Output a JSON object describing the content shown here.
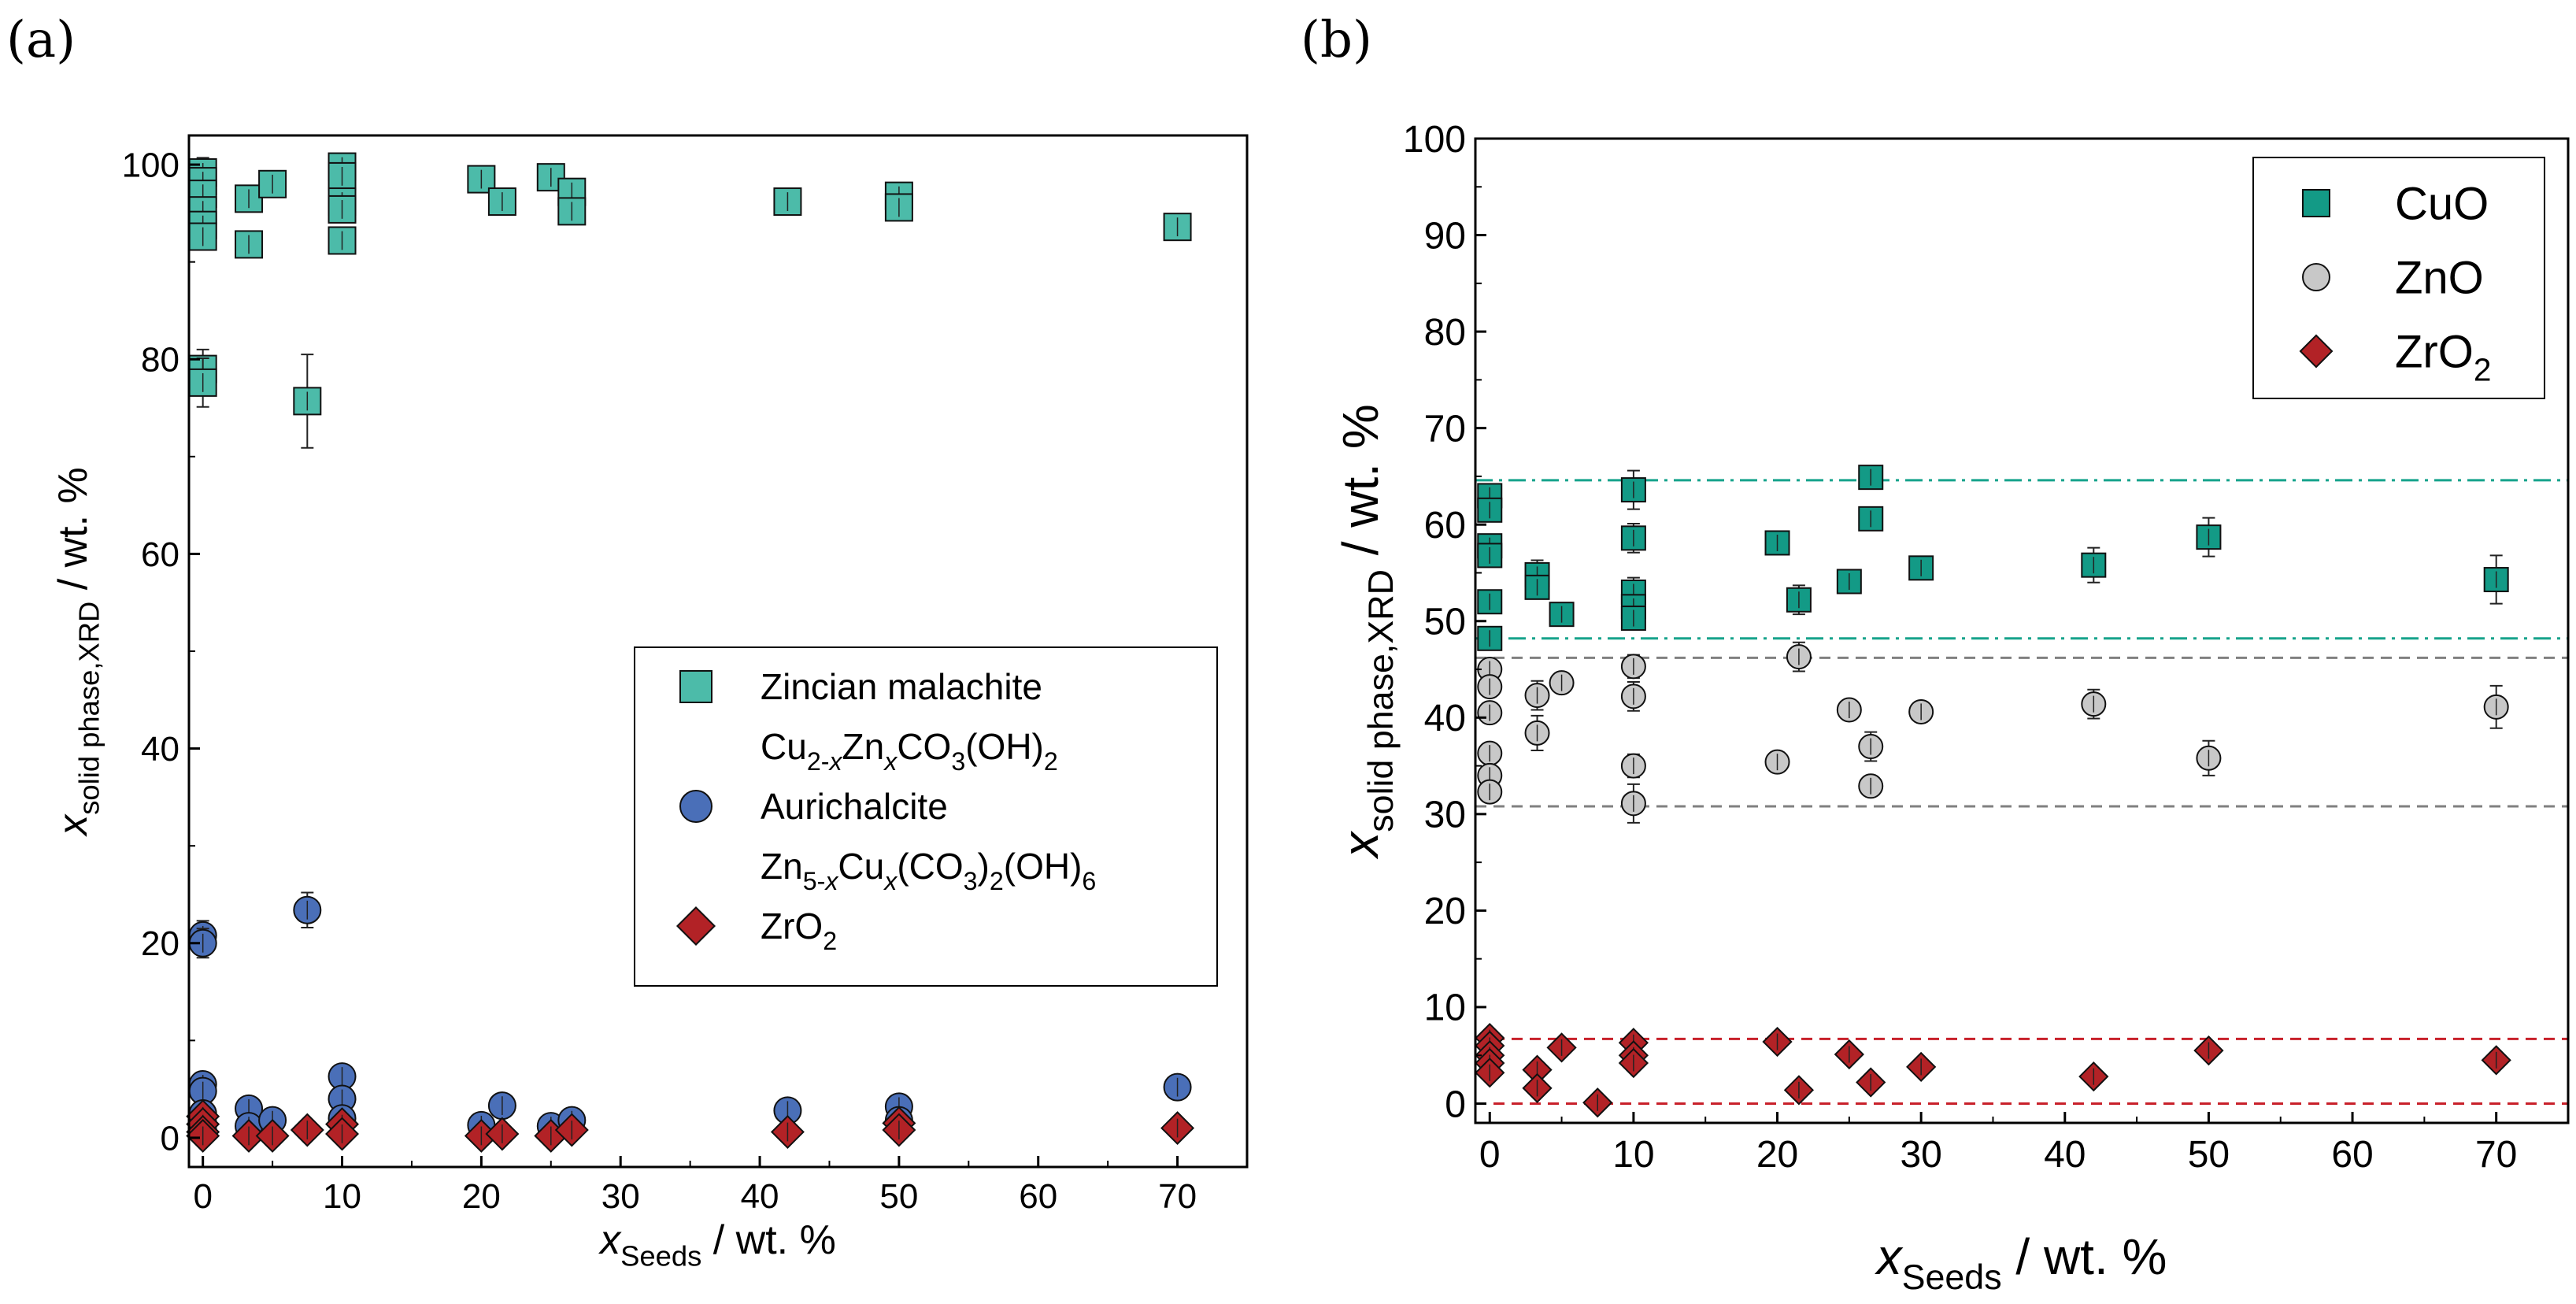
{
  "figure": {
    "panel_a_label": "(a)",
    "panel_b_label": "(b)"
  },
  "colors": {
    "malachite": "#4cbba9",
    "aurichalcite": "#4a6fb8",
    "zro2": "#b22226",
    "cuo": "#139a86",
    "zno": "#c8c8c8",
    "cuo_line": "#16a38c",
    "zno_line": "#808080",
    "zro2_line": "#c8202a"
  },
  "chart_data": [
    {
      "id": "a",
      "type": "scatter",
      "title": "",
      "xlabel": {
        "main": "x",
        "sub": "Seeds",
        "rest": " / wt. %"
      },
      "ylabel": {
        "main": "x",
        "sub": "solid phase,XRD",
        "rest": " / wt. %"
      },
      "xlim": [
        -1,
        75
      ],
      "ylim": [
        -3,
        103
      ],
      "xticks": [
        0,
        10,
        20,
        30,
        40,
        50,
        60,
        70
      ],
      "yticks": [
        0,
        20,
        40,
        60,
        80,
        100
      ],
      "legend_position": "lower-right",
      "series": [
        {
          "name": "Zincian malachite",
          "formula": "Cu2-xZnxCO3(OH)2",
          "marker": "square",
          "color_key": "malachite",
          "points": [
            {
              "x": 0,
              "y": 99.2,
              "err": 1.5
            },
            {
              "x": 0,
              "y": 98.3,
              "err": 1.2
            },
            {
              "x": 0,
              "y": 97.0,
              "err": 1.0
            },
            {
              "x": 0,
              "y": 95.3,
              "err": 1.0
            },
            {
              "x": 0,
              "y": 93.8,
              "err": 1.0
            },
            {
              "x": 0,
              "y": 92.6,
              "err": 1.0
            },
            {
              "x": 0,
              "y": 79.0,
              "err": 2.0
            },
            {
              "x": 0,
              "y": 77.6,
              "err": 2.5
            },
            {
              "x": 3.3,
              "y": 96.5,
              "err": 1.0
            },
            {
              "x": 3.3,
              "y": 91.8,
              "err": 1.0
            },
            {
              "x": 5,
              "y": 98.0,
              "err": 1.0
            },
            {
              "x": 7.5,
              "y": 75.7,
              "err": 4.8
            },
            {
              "x": 10,
              "y": 99.8,
              "err": 1.0
            },
            {
              "x": 10,
              "y": 98.8,
              "err": 1.0
            },
            {
              "x": 10,
              "y": 96.2,
              "err": 1.0
            },
            {
              "x": 10,
              "y": 95.4,
              "err": 1.0
            },
            {
              "x": 10,
              "y": 92.2,
              "err": 1.0
            },
            {
              "x": 20,
              "y": 98.5,
              "err": 1.0
            },
            {
              "x": 21.5,
              "y": 96.2,
              "err": 1.0
            },
            {
              "x": 25,
              "y": 98.7,
              "err": 1.0
            },
            {
              "x": 26.5,
              "y": 97.2,
              "err": 1.0
            },
            {
              "x": 26.5,
              "y": 95.2,
              "err": 1.0
            },
            {
              "x": 42,
              "y": 96.2,
              "err": 1.0
            },
            {
              "x": 50,
              "y": 96.8,
              "err": 1.0
            },
            {
              "x": 50,
              "y": 95.6,
              "err": 1.0
            },
            {
              "x": 70,
              "y": 93.6,
              "err": 1.0
            }
          ]
        },
        {
          "name": "Aurichalcite",
          "formula": "Zn5-xCux(CO3)2(OH)6",
          "marker": "circle",
          "color_key": "aurichalcite",
          "points": [
            {
              "x": 0,
              "y": 20.8,
              "err": 1.5
            },
            {
              "x": 0,
              "y": 20.0,
              "err": 1.5
            },
            {
              "x": 0,
              "y": 5.5,
              "err": 0.5
            },
            {
              "x": 0,
              "y": 4.8,
              "err": 0.5
            },
            {
              "x": 0,
              "y": 2.5,
              "err": 0.5
            },
            {
              "x": 0,
              "y": 1.5,
              "err": 0.5
            },
            {
              "x": 0,
              "y": 0.8,
              "err": 0.5
            },
            {
              "x": 3.3,
              "y": 3.0,
              "err": 0.5
            },
            {
              "x": 3.3,
              "y": 1.2,
              "err": 0.5
            },
            {
              "x": 5,
              "y": 1.8,
              "err": 0.5
            },
            {
              "x": 7.5,
              "y": 23.4,
              "err": 1.8
            },
            {
              "x": 10,
              "y": 6.3,
              "err": 0.5
            },
            {
              "x": 10,
              "y": 4.0,
              "err": 0.5
            },
            {
              "x": 10,
              "y": 2.0,
              "err": 0.5
            },
            {
              "x": 20,
              "y": 1.3,
              "err": 0.5
            },
            {
              "x": 21.5,
              "y": 3.3,
              "err": 0.5
            },
            {
              "x": 25,
              "y": 1.2,
              "err": 0.5
            },
            {
              "x": 26.5,
              "y": 1.8,
              "err": 0.5
            },
            {
              "x": 42,
              "y": 2.8,
              "err": 0.5
            },
            {
              "x": 50,
              "y": 3.2,
              "err": 0.5
            },
            {
              "x": 50,
              "y": 1.8,
              "err": 0.5
            },
            {
              "x": 70,
              "y": 5.2,
              "err": 0.5
            }
          ]
        },
        {
          "name": "ZrO2",
          "formula": "",
          "marker": "diamond",
          "color_key": "zro2",
          "points": [
            {
              "x": 0,
              "y": 2.2,
              "err": 0.5
            },
            {
              "x": 0,
              "y": 1.4,
              "err": 0.5
            },
            {
              "x": 0,
              "y": 0.6,
              "err": 0.5
            },
            {
              "x": 0,
              "y": 0.2,
              "err": 0.5
            },
            {
              "x": 3.3,
              "y": 0.2,
              "err": 0.5
            },
            {
              "x": 5,
              "y": 0.2,
              "err": 0.5
            },
            {
              "x": 7.5,
              "y": 0.8,
              "err": 0.5
            },
            {
              "x": 10,
              "y": 1.4,
              "err": 0.5
            },
            {
              "x": 10,
              "y": 0.4,
              "err": 0.5
            },
            {
              "x": 20,
              "y": 0.2,
              "err": 0.5
            },
            {
              "x": 21.5,
              "y": 0.4,
              "err": 0.5
            },
            {
              "x": 25,
              "y": 0.2,
              "err": 0.5
            },
            {
              "x": 26.5,
              "y": 0.8,
              "err": 0.5
            },
            {
              "x": 42,
              "y": 0.6,
              "err": 0.5
            },
            {
              "x": 50,
              "y": 1.5,
              "err": 0.5
            },
            {
              "x": 50,
              "y": 0.8,
              "err": 0.5
            },
            {
              "x": 70,
              "y": 1.0,
              "err": 0.5
            }
          ]
        }
      ]
    },
    {
      "id": "b",
      "type": "scatter",
      "title": "",
      "xlabel": {
        "main": "x",
        "sub": "Seeds",
        "rest": " / wt. %"
      },
      "ylabel": {
        "main": "x",
        "sub": "solid phase,XRD",
        "rest": " / wt. %"
      },
      "xlim": [
        -1,
        75
      ],
      "ylim": [
        -2,
        100
      ],
      "xticks": [
        0,
        10,
        20,
        30,
        40,
        50,
        60,
        70
      ],
      "yticks": [
        0,
        10,
        20,
        30,
        40,
        50,
        60,
        70,
        80,
        90,
        100
      ],
      "legend_position": "top-right",
      "reference_lines": [
        {
          "y": 64.6,
          "style": "dash-dot",
          "color_key": "cuo_line"
        },
        {
          "y": 48.2,
          "style": "dash-dot",
          "color_key": "cuo_line"
        },
        {
          "y": 46.2,
          "style": "dashed",
          "color_key": "zno_line"
        },
        {
          "y": 30.8,
          "style": "dashed",
          "color_key": "zno_line"
        },
        {
          "y": 6.7,
          "style": "dashed",
          "color_key": "zro2_line"
        },
        {
          "y": 0.0,
          "style": "dashed",
          "color_key": "zro2_line"
        }
      ],
      "series": [
        {
          "name": "CuO",
          "marker": "square",
          "color_key": "cuo",
          "points": [
            {
              "x": 0,
              "y": 63.0,
              "err": 1.0
            },
            {
              "x": 0,
              "y": 61.5,
              "err": 1.0
            },
            {
              "x": 0,
              "y": 57.8,
              "err": 1.0
            },
            {
              "x": 0,
              "y": 56.8,
              "err": 1.0
            },
            {
              "x": 0,
              "y": 52.0,
              "err": 1.2
            },
            {
              "x": 0,
              "y": 48.2,
              "err": 1.0
            },
            {
              "x": 3.3,
              "y": 54.8,
              "err": 1.5
            },
            {
              "x": 3.3,
              "y": 53.5,
              "err": 1.2
            },
            {
              "x": 5,
              "y": 50.7,
              "err": 1.0
            },
            {
              "x": 10,
              "y": 63.6,
              "err": 2.0
            },
            {
              "x": 10,
              "y": 58.6,
              "err": 1.5
            },
            {
              "x": 10,
              "y": 53.0,
              "err": 1.5
            },
            {
              "x": 10,
              "y": 51.5,
              "err": 1.2
            },
            {
              "x": 10,
              "y": 50.3,
              "err": 1.0
            },
            {
              "x": 20,
              "y": 58.1,
              "err": 1.0
            },
            {
              "x": 21.5,
              "y": 52.2,
              "err": 1.5
            },
            {
              "x": 25,
              "y": 54.1,
              "err": 1.0
            },
            {
              "x": 26.5,
              "y": 64.9,
              "err": 1.0
            },
            {
              "x": 26.5,
              "y": 60.6,
              "err": 1.0
            },
            {
              "x": 30,
              "y": 55.5,
              "err": 1.0
            },
            {
              "x": 42,
              "y": 55.8,
              "err": 1.8
            },
            {
              "x": 50,
              "y": 58.7,
              "err": 2.0
            },
            {
              "x": 70,
              "y": 54.3,
              "err": 2.5
            }
          ]
        },
        {
          "name": "ZnO",
          "marker": "circle",
          "color_key": "zno",
          "points": [
            {
              "x": 0,
              "y": 45.0,
              "err": 1.0
            },
            {
              "x": 0,
              "y": 43.2,
              "err": 1.0
            },
            {
              "x": 0,
              "y": 40.5,
              "err": 1.0
            },
            {
              "x": 0,
              "y": 36.3,
              "err": 1.0
            },
            {
              "x": 0,
              "y": 34.0,
              "err": 1.0
            },
            {
              "x": 0,
              "y": 32.3,
              "err": 1.0
            },
            {
              "x": 3.3,
              "y": 42.3,
              "err": 1.5
            },
            {
              "x": 3.3,
              "y": 38.4,
              "err": 1.8
            },
            {
              "x": 5,
              "y": 43.6,
              "err": 1.0
            },
            {
              "x": 10,
              "y": 45.3,
              "err": 1.2
            },
            {
              "x": 10,
              "y": 42.2,
              "err": 1.5
            },
            {
              "x": 10,
              "y": 35.0,
              "err": 1.2
            },
            {
              "x": 10,
              "y": 31.1,
              "err": 2.0
            },
            {
              "x": 20,
              "y": 35.4,
              "err": 1.0
            },
            {
              "x": 21.5,
              "y": 46.3,
              "err": 1.5
            },
            {
              "x": 25,
              "y": 40.8,
              "err": 1.0
            },
            {
              "x": 26.5,
              "y": 37.0,
              "err": 1.5
            },
            {
              "x": 26.5,
              "y": 32.9,
              "err": 1.0
            },
            {
              "x": 30,
              "y": 40.6,
              "err": 1.0
            },
            {
              "x": 42,
              "y": 41.4,
              "err": 1.5
            },
            {
              "x": 50,
              "y": 35.8,
              "err": 1.8
            },
            {
              "x": 70,
              "y": 41.1,
              "err": 2.2
            }
          ]
        },
        {
          "name": "ZrO2",
          "marker": "diamond",
          "color_key": "zro2",
          "points": [
            {
              "x": 0,
              "y": 6.8,
              "err": 0.5
            },
            {
              "x": 0,
              "y": 6.0,
              "err": 0.5
            },
            {
              "x": 0,
              "y": 5.0,
              "err": 0.5
            },
            {
              "x": 0,
              "y": 4.2,
              "err": 0.5
            },
            {
              "x": 0,
              "y": 3.2,
              "err": 0.5
            },
            {
              "x": 3.3,
              "y": 3.5,
              "err": 0.8
            },
            {
              "x": 3.3,
              "y": 1.6,
              "err": 0.8
            },
            {
              "x": 5,
              "y": 5.8,
              "err": 0.5
            },
            {
              "x": 7.5,
              "y": 0.1,
              "err": 0.3
            },
            {
              "x": 10,
              "y": 6.3,
              "err": 0.5
            },
            {
              "x": 10,
              "y": 5.0,
              "err": 0.5
            },
            {
              "x": 10,
              "y": 4.2,
              "err": 0.5
            },
            {
              "x": 20,
              "y": 6.4,
              "err": 0.5
            },
            {
              "x": 21.5,
              "y": 1.4,
              "err": 0.5
            },
            {
              "x": 25,
              "y": 5.1,
              "err": 0.5
            },
            {
              "x": 26.5,
              "y": 2.2,
              "err": 0.5
            },
            {
              "x": 30,
              "y": 3.8,
              "err": 0.5
            },
            {
              "x": 42,
              "y": 2.8,
              "err": 0.5
            },
            {
              "x": 50,
              "y": 5.5,
              "err": 0.5
            },
            {
              "x": 70,
              "y": 4.5,
              "err": 0.5
            }
          ]
        }
      ]
    }
  ]
}
